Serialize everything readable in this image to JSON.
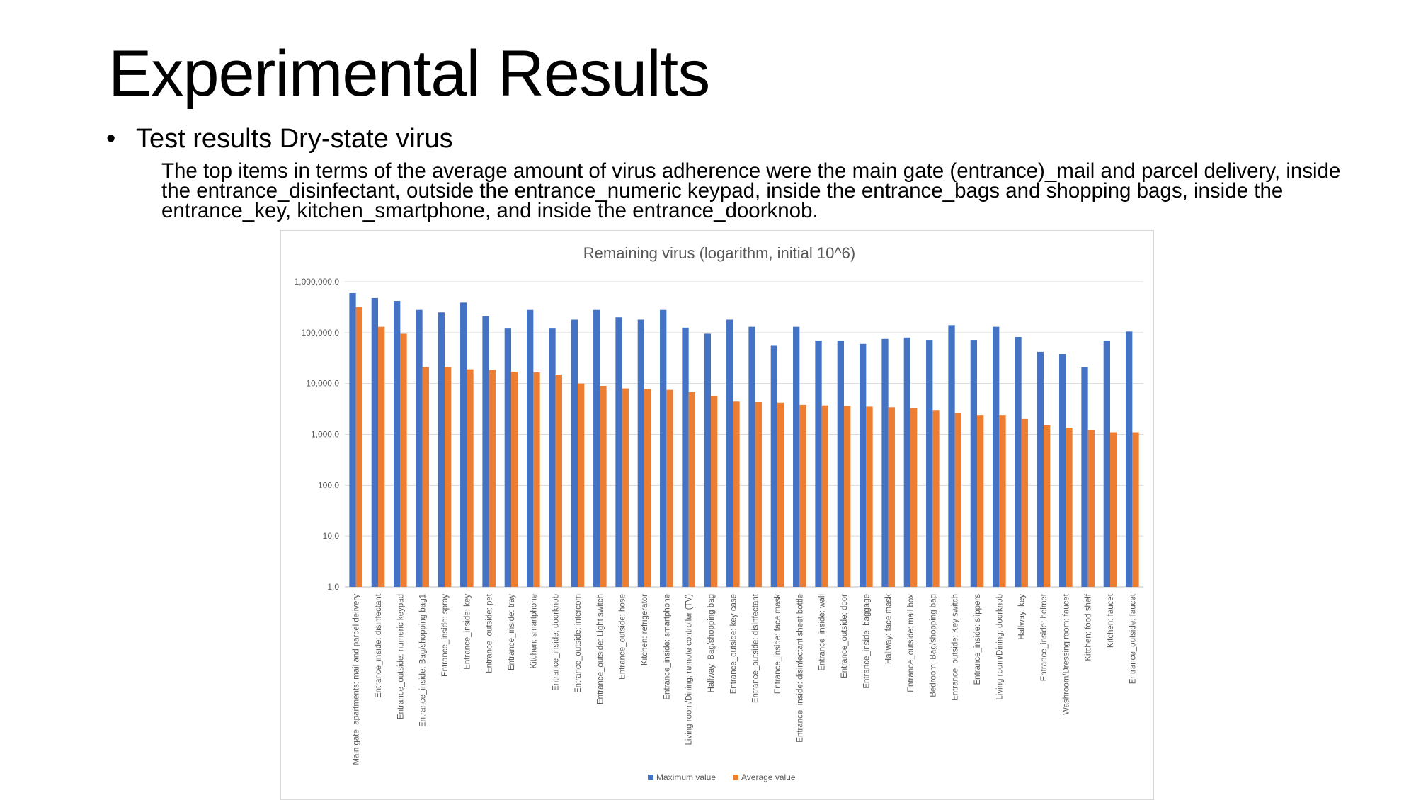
{
  "slide": {
    "title": "Experimental Results",
    "bullet_symbol": "•",
    "bullet": "Test results Dry-state virus",
    "paragraph": "The top items in terms of the average amount of virus adherence were the main gate (entrance)_mail and parcel delivery, inside the entrance_disinfectant, outside the entrance_numeric keypad, inside the entrance_bags and shopping bags, inside the entrance_key, kitchen_smartphone, and inside the entrance_doorknob."
  },
  "chart_data": {
    "type": "bar",
    "title": "Remaining virus (logarithm, initial 10^6)",
    "xlabel": "",
    "ylabel": "",
    "yscale": "log10",
    "ylim": [
      1,
      1000000
    ],
    "yticks": [
      1,
      10,
      100,
      1000,
      10000,
      100000,
      1000000
    ],
    "ytick_labels": [
      "1.0",
      "10.0",
      "100.0",
      "1,000.0",
      "10,000.0",
      "100,000.0",
      "1,000,000.0"
    ],
    "grid": true,
    "legend_position": "bottom",
    "categories": [
      "Main gate_apartments: mail and parcel delivery",
      "Entrance_inside: disinfectant",
      "Entrance_outside: numeric keypad",
      "Entrance_inside: Bag/shopping bag1",
      "Entrance_inside: spray",
      "Entrance_inside: key",
      "Entrance_outside: pet",
      "Entrance_inside: tray",
      "Kitchen: smartphone",
      "Entrance_inside: doorknob",
      "Entrance_outside: intercom",
      "Entrance_outside: Light switch",
      "Entrance_outside: hose",
      "Kitchen: refrigerator",
      "Entrance_inside: smartphone",
      "Living room/Dining: remote controller (TV)",
      "Hallway: Bag/shopping bag",
      "Entrance_outside: key case",
      "Entrance_outside: disinfectant",
      "Entrance_inside: face mask",
      "Entrance_inside: disinfectant sheet bottle",
      "Entrance_inside: wall",
      "Entrance_outside: door",
      "Entrance_inside: baggage",
      "Hallway: face mask",
      "Entrance_outside: mail box",
      "Bedroom: Bag/shopping bag",
      "Entrance_outside: Key switch",
      "Entrance_inside: slippers",
      "Living room/Dining: doorknob",
      "Hallway: key",
      "Entrance_inside: helmet",
      "Washroom/Dressing room: faucet",
      "Kitchen: food shelf",
      "Kitchen: faucet",
      "Entrance_outside: faucet"
    ],
    "series": [
      {
        "name": "Maximum value",
        "color": "#4472c4",
        "values": [
          600000,
          480000,
          420000,
          280000,
          250000,
          390000,
          210000,
          120000,
          280000,
          120000,
          180000,
          280000,
          200000,
          180000,
          280000,
          125000,
          95000,
          180000,
          130000,
          55000,
          130000,
          70000,
          70000,
          60000,
          75000,
          80000,
          72000,
          140000,
          72000,
          130000,
          82000,
          42000,
          38000,
          21000,
          70000,
          105000
        ]
      },
      {
        "name": "Average value",
        "color": "#ed7d31",
        "values": [
          320000,
          130000,
          95000,
          21000,
          21000,
          19000,
          18500,
          17000,
          16500,
          15000,
          10000,
          9000,
          8000,
          7800,
          7500,
          6800,
          5600,
          4400,
          4300,
          4200,
          3800,
          3700,
          3600,
          3500,
          3400,
          3300,
          3000,
          2600,
          2400,
          2400,
          2000,
          1500,
          1350,
          1200,
          1100,
          1100
        ]
      }
    ]
  }
}
